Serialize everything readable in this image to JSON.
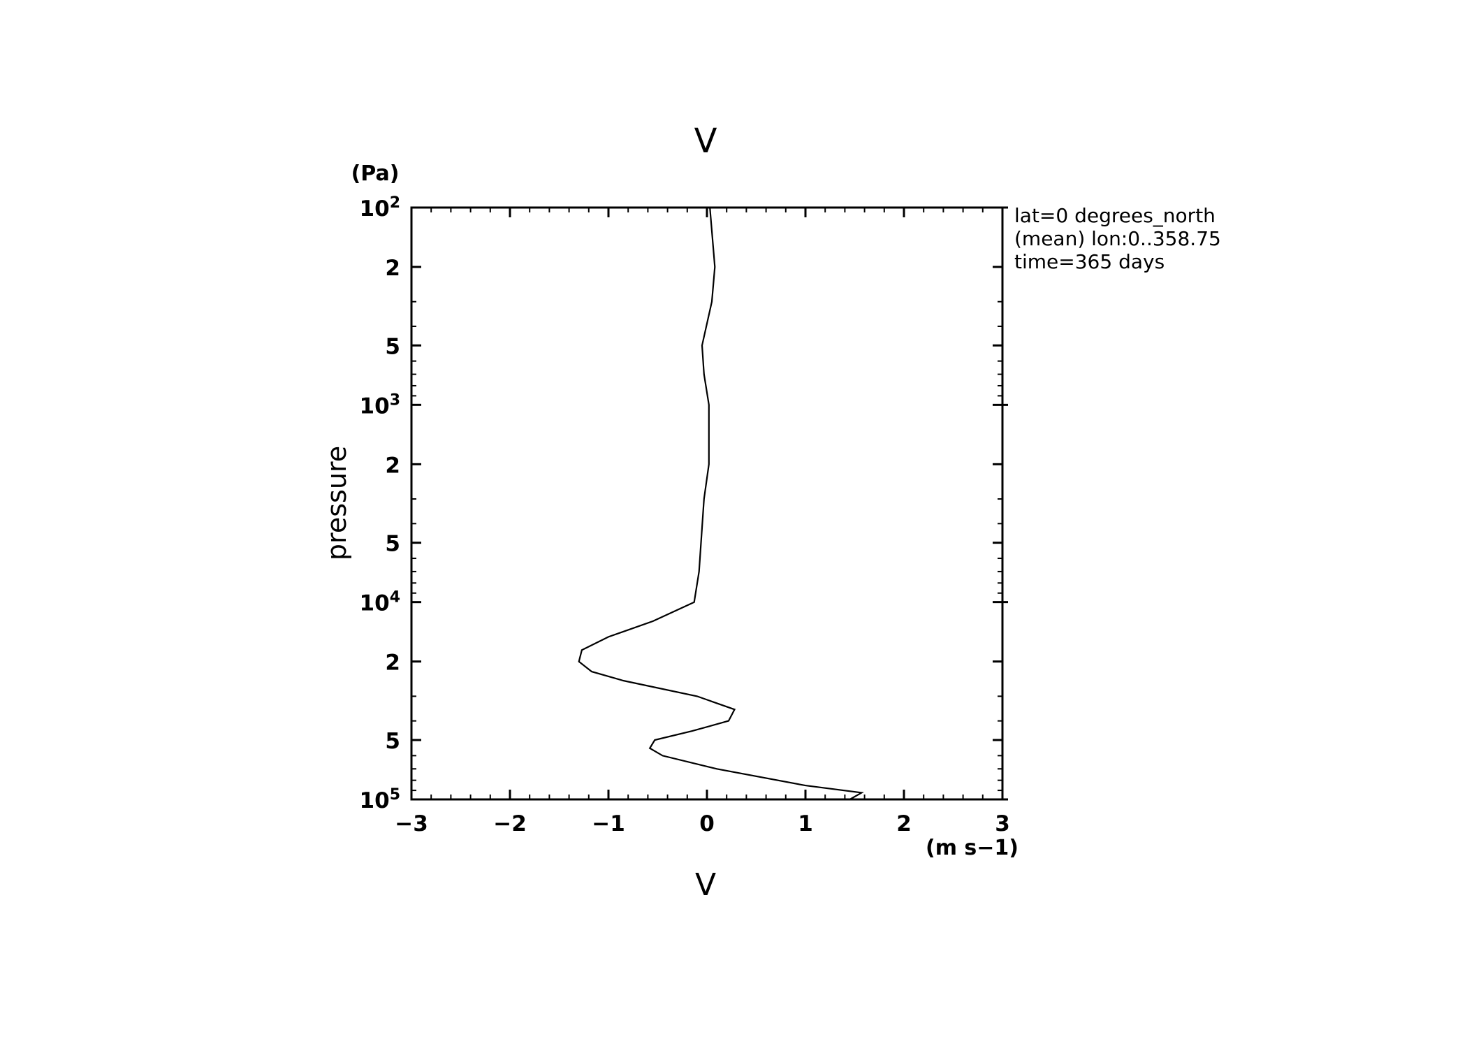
{
  "chart_data": {
    "type": "line",
    "title": "V",
    "xlabel": "V",
    "x_unit": "(m s−1)",
    "ylabel": "pressure",
    "y_unit": "(Pa)",
    "xlim": [
      -3,
      3
    ],
    "ylim": [
      100000,
      100
    ],
    "y_scale": "log",
    "y_direction": "decreasing upward (surface at bottom)",
    "grid": false,
    "x_ticks": [
      -3,
      -2,
      -1,
      0,
      1,
      2,
      3
    ],
    "x_tick_labels": [
      "−3",
      "−2",
      "−1",
      "0",
      "1",
      "2",
      "3"
    ],
    "y_major_ticks": [
      {
        "value": 100,
        "base": "10",
        "exp": "2"
      },
      {
        "value": 200,
        "label": "2"
      },
      {
        "value": 500,
        "label": "5"
      },
      {
        "value": 1000,
        "base": "10",
        "exp": "3"
      },
      {
        "value": 2000,
        "label": "2"
      },
      {
        "value": 5000,
        "label": "5"
      },
      {
        "value": 10000,
        "base": "10",
        "exp": "4"
      },
      {
        "value": 20000,
        "label": "2"
      },
      {
        "value": 50000,
        "label": "5"
      },
      {
        "value": 100000,
        "base": "10",
        "exp": "5"
      }
    ],
    "annotations": [
      "lat=0 degrees_north",
      "(mean) lon:0..358.75",
      "time=365 days"
    ],
    "series": [
      {
        "points": [
          {
            "x": 0.03,
            "y": 100
          },
          {
            "x": 0.08,
            "y": 200
          },
          {
            "x": 0.05,
            "y": 300
          },
          {
            "x": -0.05,
            "y": 500
          },
          {
            "x": -0.03,
            "y": 700
          },
          {
            "x": 0.02,
            "y": 1000
          },
          {
            "x": 0.02,
            "y": 2000
          },
          {
            "x": -0.03,
            "y": 3000
          },
          {
            "x": -0.06,
            "y": 5000
          },
          {
            "x": -0.08,
            "y": 7000
          },
          {
            "x": -0.13,
            "y": 10000
          },
          {
            "x": -0.55,
            "y": 12500
          },
          {
            "x": -1.0,
            "y": 15000
          },
          {
            "x": -1.27,
            "y": 17500
          },
          {
            "x": -1.3,
            "y": 20000
          },
          {
            "x": -1.17,
            "y": 22500
          },
          {
            "x": -0.85,
            "y": 25000
          },
          {
            "x": -0.1,
            "y": 30000
          },
          {
            "x": 0.28,
            "y": 35000
          },
          {
            "x": 0.22,
            "y": 40000
          },
          {
            "x": -0.15,
            "y": 45000
          },
          {
            "x": -0.53,
            "y": 50000
          },
          {
            "x": -0.58,
            "y": 55000
          },
          {
            "x": -0.45,
            "y": 60000
          },
          {
            "x": 0.1,
            "y": 70000
          },
          {
            "x": 1.0,
            "y": 85000
          },
          {
            "x": 1.57,
            "y": 92500
          },
          {
            "x": 1.45,
            "y": 100000
          }
        ]
      }
    ]
  }
}
